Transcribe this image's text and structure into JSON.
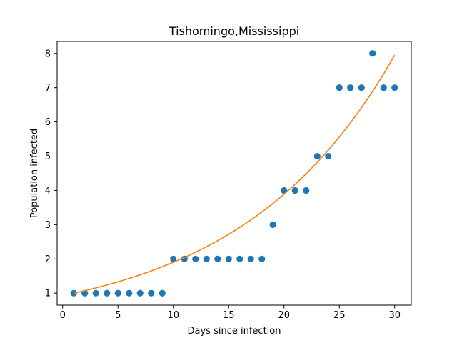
{
  "chart_data": {
    "type": "scatter",
    "title": "Tishomingo,Mississippi",
    "xlabel": "Days since infection",
    "ylabel": "Population infected",
    "xlim": [
      -0.5,
      31.5
    ],
    "ylim": [
      0.65,
      8.35
    ],
    "xticks": [
      0,
      5,
      10,
      15,
      20,
      25,
      30
    ],
    "yticks": [
      1,
      2,
      3,
      4,
      5,
      6,
      7,
      8
    ],
    "grid": false,
    "series": [
      {
        "kind": "scatter",
        "color": "#1f77b4",
        "x": [
          1,
          2,
          3,
          4,
          5,
          6,
          7,
          8,
          9,
          10,
          11,
          12,
          13,
          14,
          15,
          16,
          17,
          18,
          19,
          20,
          21,
          22,
          23,
          24,
          25,
          26,
          27,
          28,
          29,
          30
        ],
        "y": [
          1,
          1,
          1,
          1,
          1,
          1,
          1,
          1,
          1,
          2,
          2,
          2,
          2,
          2,
          2,
          2,
          2,
          2,
          3,
          4,
          4,
          4,
          5,
          5,
          7,
          7,
          7,
          8,
          7,
          7
        ]
      },
      {
        "kind": "line",
        "color": "#ff7f0e",
        "x": [
          1,
          5,
          10,
          15,
          20,
          25,
          30
        ],
        "y": [
          1.0,
          1.33,
          1.92,
          2.76,
          3.98,
          5.63,
          7.95
        ]
      }
    ]
  }
}
